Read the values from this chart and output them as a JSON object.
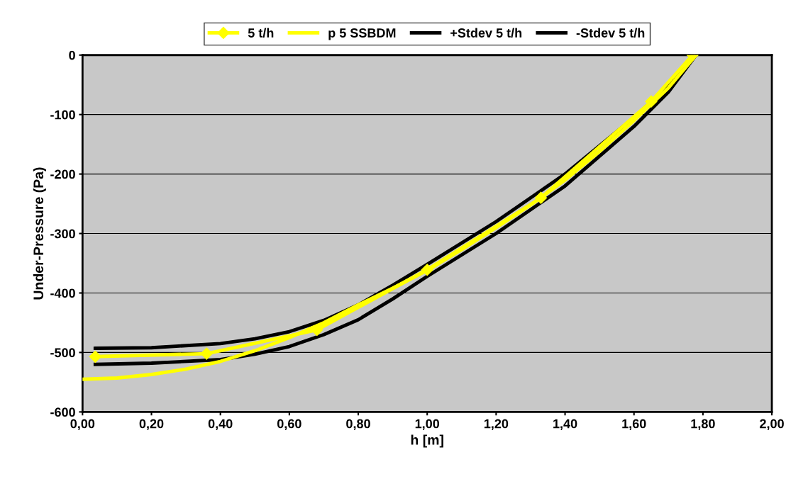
{
  "chart_data": {
    "type": "line",
    "xlabel": "h [m]",
    "ylabel": "Under-Pressure (Pa)",
    "xlim": [
      0,
      2
    ],
    "ylim": [
      -600,
      0
    ],
    "xticks": [
      {
        "value": 0,
        "label": "0,00"
      },
      {
        "value": 0.2,
        "label": "0,20"
      },
      {
        "value": 0.4,
        "label": "0,40"
      },
      {
        "value": 0.6,
        "label": "0,60"
      },
      {
        "value": 0.8,
        "label": "0,80"
      },
      {
        "value": 1.0,
        "label": "1,00"
      },
      {
        "value": 1.2,
        "label": "1,20"
      },
      {
        "value": 1.4,
        "label": "1,40"
      },
      {
        "value": 1.6,
        "label": "1,60"
      },
      {
        "value": 1.8,
        "label": "1,80"
      },
      {
        "value": 2.0,
        "label": "2,00"
      }
    ],
    "yticks": [
      -600,
      -500,
      -400,
      -300,
      -200,
      -100,
      0
    ],
    "grid": "y",
    "legend": "top",
    "series": [
      {
        "name": "5 t/h",
        "color": "#ffff00",
        "marker": "diamond",
        "x": [
          0.037,
          0.36,
          0.68,
          1.0,
          1.33,
          1.65,
          1.77
        ],
        "values": [
          -507,
          -502,
          -462,
          -361,
          -240,
          -78,
          0
        ]
      },
      {
        "name": "p 5 SSBDM",
        "color": "#ffff00",
        "marker": "none",
        "x": [
          0,
          0.1,
          0.2,
          0.3,
          0.4,
          0.5,
          0.6,
          0.7,
          0.8,
          0.9,
          1.0,
          1.1,
          1.2,
          1.3,
          1.4,
          1.5,
          1.6,
          1.7,
          1.78
        ],
        "values": [
          -545,
          -543,
          -537,
          -528,
          -515,
          -497,
          -475,
          -450,
          -420,
          -392,
          -362,
          -327,
          -290,
          -252,
          -210,
          -162,
          -110,
          -55,
          0
        ]
      },
      {
        "name": "+Stdev 5 t/h",
        "color": "#000000",
        "marker": "none",
        "x": [
          0.037,
          0.2,
          0.4,
          0.5,
          0.6,
          0.7,
          0.8,
          0.9,
          1.0,
          1.2,
          1.4,
          1.6,
          1.7,
          1.78
        ],
        "values": [
          -493,
          -492,
          -485,
          -477,
          -465,
          -446,
          -420,
          -387,
          -352,
          -280,
          -200,
          -105,
          -52,
          0
        ]
      },
      {
        "name": "-Stdev 5 t/h",
        "color": "#000000",
        "marker": "none",
        "x": [
          0.037,
          0.2,
          0.4,
          0.5,
          0.6,
          0.7,
          0.8,
          0.9,
          1.0,
          1.2,
          1.4,
          1.6,
          1.7,
          1.78
        ],
        "values": [
          -520,
          -518,
          -512,
          -503,
          -490,
          -470,
          -445,
          -410,
          -372,
          -300,
          -220,
          -120,
          -62,
          0
        ]
      }
    ]
  }
}
